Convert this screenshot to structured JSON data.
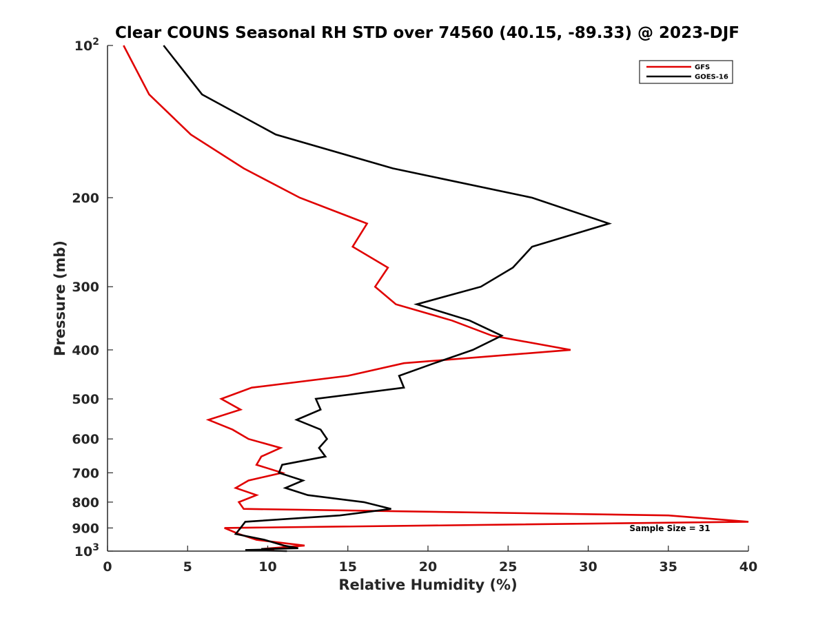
{
  "chart_data": {
    "type": "line",
    "title": "Clear COUNS Seasonal RH STD over 74560 (40.15, -89.33) @ 2023-DJF",
    "xlabel": "Relative Humidity (%)",
    "ylabel": "Pressure (mb)",
    "xlim": [
      0,
      40
    ],
    "ylim": [
      100,
      1000
    ],
    "yscale": "log",
    "yreversed": true,
    "xticks": [
      0,
      5,
      10,
      15,
      20,
      25,
      30,
      35,
      40
    ],
    "xtick_labels": [
      "0",
      "5",
      "10",
      "15",
      "20",
      "25",
      "30",
      "35",
      "40"
    ],
    "yticks": [
      100,
      200,
      300,
      400,
      500,
      600,
      700,
      800,
      900,
      1000
    ],
    "ytick_labels": [
      {
        "base": "10",
        "exp": "2"
      },
      {
        "base": "200",
        "exp": ""
      },
      {
        "base": "300",
        "exp": ""
      },
      {
        "base": "400",
        "exp": ""
      },
      {
        "base": "500",
        "exp": ""
      },
      {
        "base": "600",
        "exp": ""
      },
      {
        "base": "700",
        "exp": ""
      },
      {
        "base": "800",
        "exp": ""
      },
      {
        "base": "900",
        "exp": ""
      },
      {
        "base": "10",
        "exp": "3"
      }
    ],
    "grid": false,
    "legend_position": "top-right",
    "annotation": "Sample Size = 31",
    "series": [
      {
        "name": "GFS",
        "color": "#e00000",
        "points": [
          [
            1.0,
            100
          ],
          [
            2.6,
            125
          ],
          [
            5.2,
            150
          ],
          [
            8.5,
            175
          ],
          [
            12.0,
            200
          ],
          [
            16.2,
            225
          ],
          [
            15.3,
            250
          ],
          [
            17.5,
            275
          ],
          [
            16.7,
            300
          ],
          [
            18.0,
            325
          ],
          [
            21.5,
            350
          ],
          [
            24.0,
            375
          ],
          [
            28.9,
            400
          ],
          [
            18.5,
            425
          ],
          [
            15.0,
            450
          ],
          [
            9.0,
            475
          ],
          [
            7.1,
            500
          ],
          [
            8.3,
            525
          ],
          [
            6.3,
            550
          ],
          [
            7.8,
            575
          ],
          [
            8.8,
            600
          ],
          [
            10.8,
            625
          ],
          [
            9.6,
            650
          ],
          [
            9.3,
            675
          ],
          [
            10.9,
            700
          ],
          [
            8.8,
            725
          ],
          [
            8.0,
            750
          ],
          [
            9.3,
            775
          ],
          [
            8.2,
            800
          ],
          [
            8.5,
            825
          ],
          [
            35.0,
            850
          ],
          [
            40.0,
            875
          ],
          [
            7.3,
            900
          ],
          [
            8.2,
            925
          ],
          [
            9.3,
            950
          ],
          [
            12.3,
            975
          ],
          [
            10.2,
            987
          ],
          [
            9.7,
            990
          ],
          [
            10.4,
            993
          ],
          [
            10.0,
            995
          ],
          [
            10.0,
            1000
          ]
        ]
      },
      {
        "name": "GOES-16",
        "color": "#000000",
        "points": [
          [
            3.5,
            100
          ],
          [
            5.9,
            125
          ],
          [
            10.5,
            150
          ],
          [
            17.8,
            175
          ],
          [
            26.5,
            200
          ],
          [
            31.3,
            225
          ],
          [
            26.5,
            250
          ],
          [
            25.3,
            275
          ],
          [
            23.3,
            300
          ],
          [
            19.3,
            325
          ],
          [
            22.6,
            350
          ],
          [
            24.6,
            375
          ],
          [
            22.8,
            400
          ],
          [
            20.4,
            425
          ],
          [
            18.2,
            450
          ],
          [
            18.5,
            475
          ],
          [
            13.0,
            500
          ],
          [
            13.3,
            525
          ],
          [
            11.8,
            550
          ],
          [
            13.3,
            575
          ],
          [
            13.7,
            600
          ],
          [
            13.2,
            625
          ],
          [
            13.6,
            650
          ],
          [
            10.9,
            675
          ],
          [
            10.7,
            700
          ],
          [
            12.2,
            725
          ],
          [
            11.1,
            750
          ],
          [
            12.5,
            775
          ],
          [
            16.0,
            800
          ],
          [
            17.7,
            825
          ],
          [
            14.5,
            850
          ],
          [
            8.6,
            875
          ],
          [
            8.3,
            900
          ],
          [
            8.0,
            925
          ],
          [
            9.8,
            950
          ],
          [
            11.0,
            975
          ],
          [
            11.9,
            987
          ],
          [
            9.6,
            990
          ],
          [
            9.8,
            993
          ],
          [
            8.6,
            995
          ],
          [
            11.2,
            1000
          ]
        ]
      }
    ]
  }
}
